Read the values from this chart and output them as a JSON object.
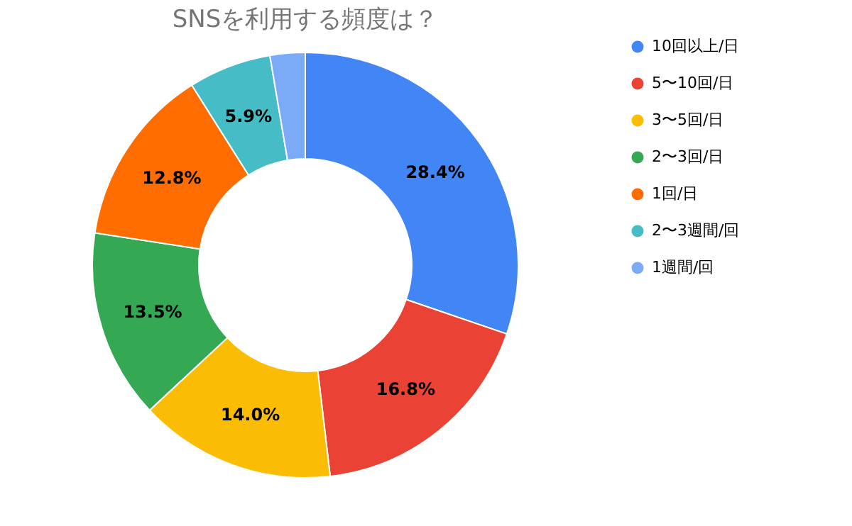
{
  "chart_data": {
    "type": "donut",
    "title": "SNSを利用する頻度は？",
    "categories": [
      "10回以上/日",
      "5〜10回/日",
      "3〜5回/日",
      "2〜3回/日",
      "1回/日",
      "2〜3週間/回",
      "1週間/回"
    ],
    "values": [
      28.4,
      16.8,
      14.0,
      13.5,
      12.8,
      5.9,
      2.5
    ],
    "value_labels": [
      "28.4%",
      "16.8%",
      "14.0%",
      "13.5%",
      "12.8%",
      "5.9%",
      null
    ],
    "colors": [
      "#4285f4",
      "#ea4335",
      "#fbbc04",
      "#34a853",
      "#ff6d01",
      "#46bdc6",
      "#7baaf7"
    ],
    "legend": "right"
  }
}
